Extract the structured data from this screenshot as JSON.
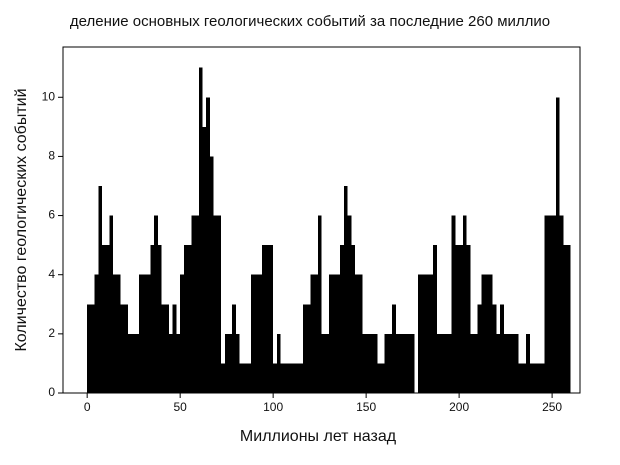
{
  "chart_data": {
    "type": "histogram",
    "title": "деление основных геологических событий за последние 260 миллио",
    "x_label": "Миллионы лет назад",
    "y_label": "Количество геологических событий",
    "color": "#000000",
    "bins": [
      0,
      2,
      4,
      6,
      8,
      10,
      12,
      14,
      16,
      18,
      20,
      22,
      24,
      26,
      28,
      30,
      32,
      34,
      36,
      38,
      40,
      42,
      44,
      46,
      48,
      50,
      52,
      54,
      56,
      58,
      60,
      62,
      64,
      66,
      68,
      70,
      72,
      74,
      76,
      78,
      80,
      82,
      84,
      86,
      88,
      90,
      92,
      94,
      96,
      98,
      100,
      102,
      104,
      106,
      108,
      110,
      112,
      114,
      116,
      118,
      120,
      122,
      124,
      126,
      128,
      130,
      132,
      134,
      136,
      138,
      140,
      142,
      144,
      146,
      148,
      150,
      152,
      154,
      156,
      158,
      160,
      162,
      164,
      166,
      168,
      170,
      172,
      174,
      176,
      178,
      180,
      182,
      184,
      186,
      188,
      190,
      192,
      194,
      196,
      198,
      200,
      202,
      204,
      206,
      208,
      210,
      212,
      214,
      216,
      218,
      220,
      222,
      224,
      226,
      228,
      230,
      232,
      234,
      236,
      238,
      240,
      242,
      244,
      246,
      248,
      250,
      252,
      254,
      256,
      258,
      260
    ],
    "values": [
      3,
      3,
      4,
      7,
      5,
      5,
      6,
      4,
      4,
      3,
      3,
      2,
      2,
      2,
      4,
      4,
      4,
      5,
      6,
      5,
      3,
      3,
      2,
      3,
      2,
      4,
      5,
      5,
      6,
      6,
      11,
      9,
      10,
      8,
      6,
      6,
      1,
      2,
      2,
      3,
      2,
      1,
      1,
      1,
      4,
      4,
      4,
      5,
      5,
      5,
      1,
      2,
      1,
      1,
      1,
      1,
      1,
      1,
      3,
      3,
      4,
      4,
      6,
      2,
      2,
      4,
      4,
      4,
      5,
      7,
      6,
      5,
      4,
      4,
      2,
      2,
      2,
      2,
      1,
      1,
      2,
      2,
      3,
      2,
      2,
      2,
      2,
      2,
      0,
      4,
      4,
      4,
      4,
      5,
      2,
      2,
      2,
      2,
      6,
      5,
      5,
      6,
      5,
      2,
      2,
      3,
      4,
      4,
      4,
      3,
      2,
      3,
      2,
      2,
      2,
      2,
      1,
      1,
      2,
      1,
      1,
      1,
      1,
      6,
      6,
      6,
      10,
      6,
      5,
      5
    ],
    "xlim": [
      -13,
      265
    ],
    "ylim": [
      0,
      11.7
    ],
    "xticks": [
      0,
      50,
      100,
      150,
      200,
      250
    ],
    "yticks": [
      0,
      2,
      4,
      6,
      8,
      10
    ]
  }
}
